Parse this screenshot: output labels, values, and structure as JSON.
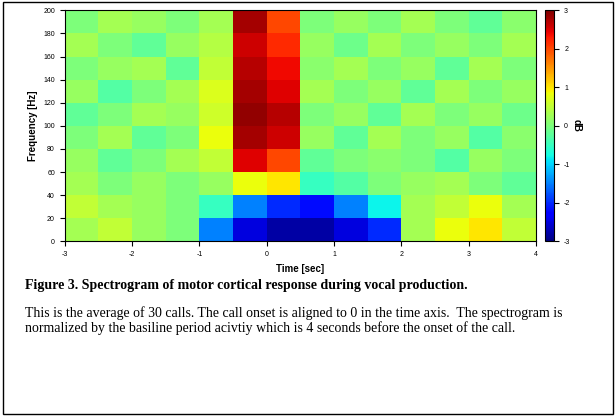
{
  "chart_data": {
    "type": "heatmap",
    "x_label": "Time [sec]",
    "y_label": "Frequency [Hz]",
    "x_bins": [
      -3,
      -2.5,
      -2,
      -1.5,
      -1,
      -0.5,
      0,
      0.5,
      1,
      1.5,
      2,
      2.5,
      3,
      3.5,
      4
    ],
    "y_bins": [
      0,
      20,
      40,
      60,
      80,
      100,
      120,
      140,
      160,
      180,
      200
    ],
    "cells": [
      [
        0.3,
        0.5,
        0.2,
        0.0,
        -1.5,
        -2.5,
        -2.8,
        -2.8,
        -2.5,
        -2.0,
        0.3,
        0.8,
        1.0,
        0.5
      ],
      [
        0.5,
        0.3,
        0.2,
        0.0,
        -0.5,
        -1.5,
        -2.0,
        -2.2,
        -1.5,
        -0.8,
        0.3,
        0.5,
        0.8,
        0.3
      ],
      [
        0.3,
        0.0,
        0.2,
        0.0,
        0.2,
        0.8,
        1.0,
        -0.5,
        -0.3,
        0.0,
        0.2,
        0.3,
        0.0,
        -0.2
      ],
      [
        0.2,
        -0.2,
        0.0,
        0.3,
        0.5,
        2.5,
        2.0,
        -0.2,
        0.0,
        0.1,
        0.0,
        -0.3,
        0.2,
        0.0
      ],
      [
        0.0,
        0.3,
        -0.2,
        0.0,
        0.8,
        2.8,
        2.6,
        0.2,
        -0.2,
        0.3,
        0.0,
        0.2,
        -0.3,
        0.1
      ],
      [
        -0.2,
        0.0,
        0.3,
        0.2,
        0.6,
        2.9,
        2.7,
        0.0,
        0.2,
        -0.2,
        0.3,
        0.0,
        0.2,
        -0.1
      ],
      [
        0.2,
        -0.3,
        0.0,
        0.3,
        0.7,
        2.8,
        2.5,
        0.3,
        0.0,
        0.2,
        -0.2,
        0.3,
        0.0,
        0.2
      ],
      [
        0.0,
        0.2,
        0.3,
        -0.2,
        0.5,
        2.7,
        2.4,
        0.1,
        0.3,
        0.0,
        0.2,
        -0.2,
        0.3,
        0.0
      ],
      [
        0.3,
        0.0,
        -0.2,
        0.2,
        0.4,
        2.6,
        2.2,
        0.2,
        -0.1,
        0.3,
        0.0,
        0.2,
        0.0,
        0.3
      ],
      [
        0.0,
        0.3,
        0.2,
        0.0,
        0.3,
        2.8,
        2.0,
        0.0,
        0.2,
        0.0,
        0.3,
        0.0,
        -0.2,
        0.1
      ]
    ],
    "xlim": [
      -3,
      4
    ],
    "xticks": [
      -3,
      -2,
      -1,
      0,
      1,
      2,
      3,
      4
    ],
    "ylim": [
      0,
      200
    ],
    "yticks": [
      0,
      20,
      40,
      60,
      80,
      100,
      120,
      140,
      160,
      180,
      200
    ],
    "colorbar_label": "dB",
    "colorbar_range": [
      -3,
      3
    ],
    "colorbar_ticks": [
      -3,
      -2,
      -1,
      0,
      1,
      2,
      3
    ]
  },
  "caption": {
    "bold": "Figure 3. Spectrogram of motor cortical response during vocal production.",
    "text": "This is the average of 30 calls. The call onset is aligned to 0 in the time axis.  The spectrogram is normalized by the basiline period acivtiy which is 4 seconds before the onset of the call."
  }
}
